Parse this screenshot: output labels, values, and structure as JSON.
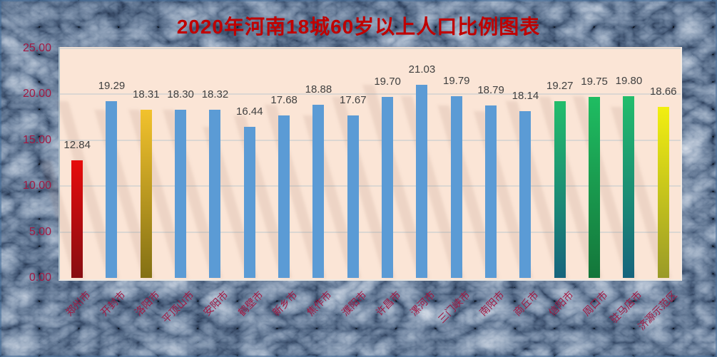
{
  "title": "2020年河南18城60岁以上人口比例图表",
  "chart_data": {
    "type": "bar",
    "title": "2020年河南18城60岁以上人口比例图表",
    "categories": [
      "郑州市",
      "开封市",
      "洛阳市",
      "平顶山市",
      "安阳市",
      "鹤壁市",
      "新乡市",
      "焦作市",
      "濮阳市",
      "许昌市",
      "漯河市",
      "三门峡市",
      "南阳市",
      "商丘市",
      "信阳市",
      "周口市",
      "驻马店市",
      "济源示范区"
    ],
    "values": [
      12.84,
      19.29,
      18.31,
      18.3,
      18.32,
      16.44,
      17.68,
      18.88,
      17.67,
      19.7,
      21.03,
      19.79,
      18.79,
      18.14,
      19.27,
      19.75,
      19.8,
      18.66
    ],
    "value_labels": [
      "12.84",
      "19.29",
      "18.31",
      "18.30",
      "18.32",
      "16.44",
      "17.68",
      "18.88",
      "17.67",
      "19.70",
      "21.03",
      "19.79",
      "18.79",
      "18.14",
      "19.27",
      "19.75",
      "19.80",
      "18.66"
    ],
    "bar_styles": [
      "red",
      "blue",
      "gold",
      "blue",
      "blue",
      "blue",
      "blue",
      "blue",
      "blue",
      "blue",
      "blue",
      "blue",
      "blue",
      "blue",
      "green_teal",
      "green",
      "green_teal",
      "yellow"
    ],
    "xlabel": "",
    "ylabel": "",
    "ylim": [
      0,
      25
    ],
    "yticks": [
      0,
      5,
      10,
      15,
      20,
      25
    ],
    "ytick_labels": [
      "0.00",
      "5.00",
      "10.00",
      "15.00",
      "20.00",
      "25.00"
    ],
    "grid": true,
    "legend_position": "none"
  },
  "styles": {
    "canvas_bg": "#6b97c7",
    "plot_bg": "#fbe5d6",
    "title_color": "#c00000",
    "axis_text_color": "#a21942",
    "data_label_color": "#3f3f3f",
    "gridline_color": "#dcd7d2",
    "bar_gradients": {
      "blue": [
        "#5b9bd5",
        "#5b9bd5"
      ],
      "red": [
        "#e60c0c",
        "#870e12"
      ],
      "gold": [
        "#f2c22d",
        "#837014"
      ],
      "green": [
        "#1fbd62",
        "#14763a"
      ],
      "green_teal": [
        "#22bd6b",
        "#16647d"
      ],
      "yellow": [
        "#f2ef10",
        "#9a9a28"
      ]
    }
  }
}
